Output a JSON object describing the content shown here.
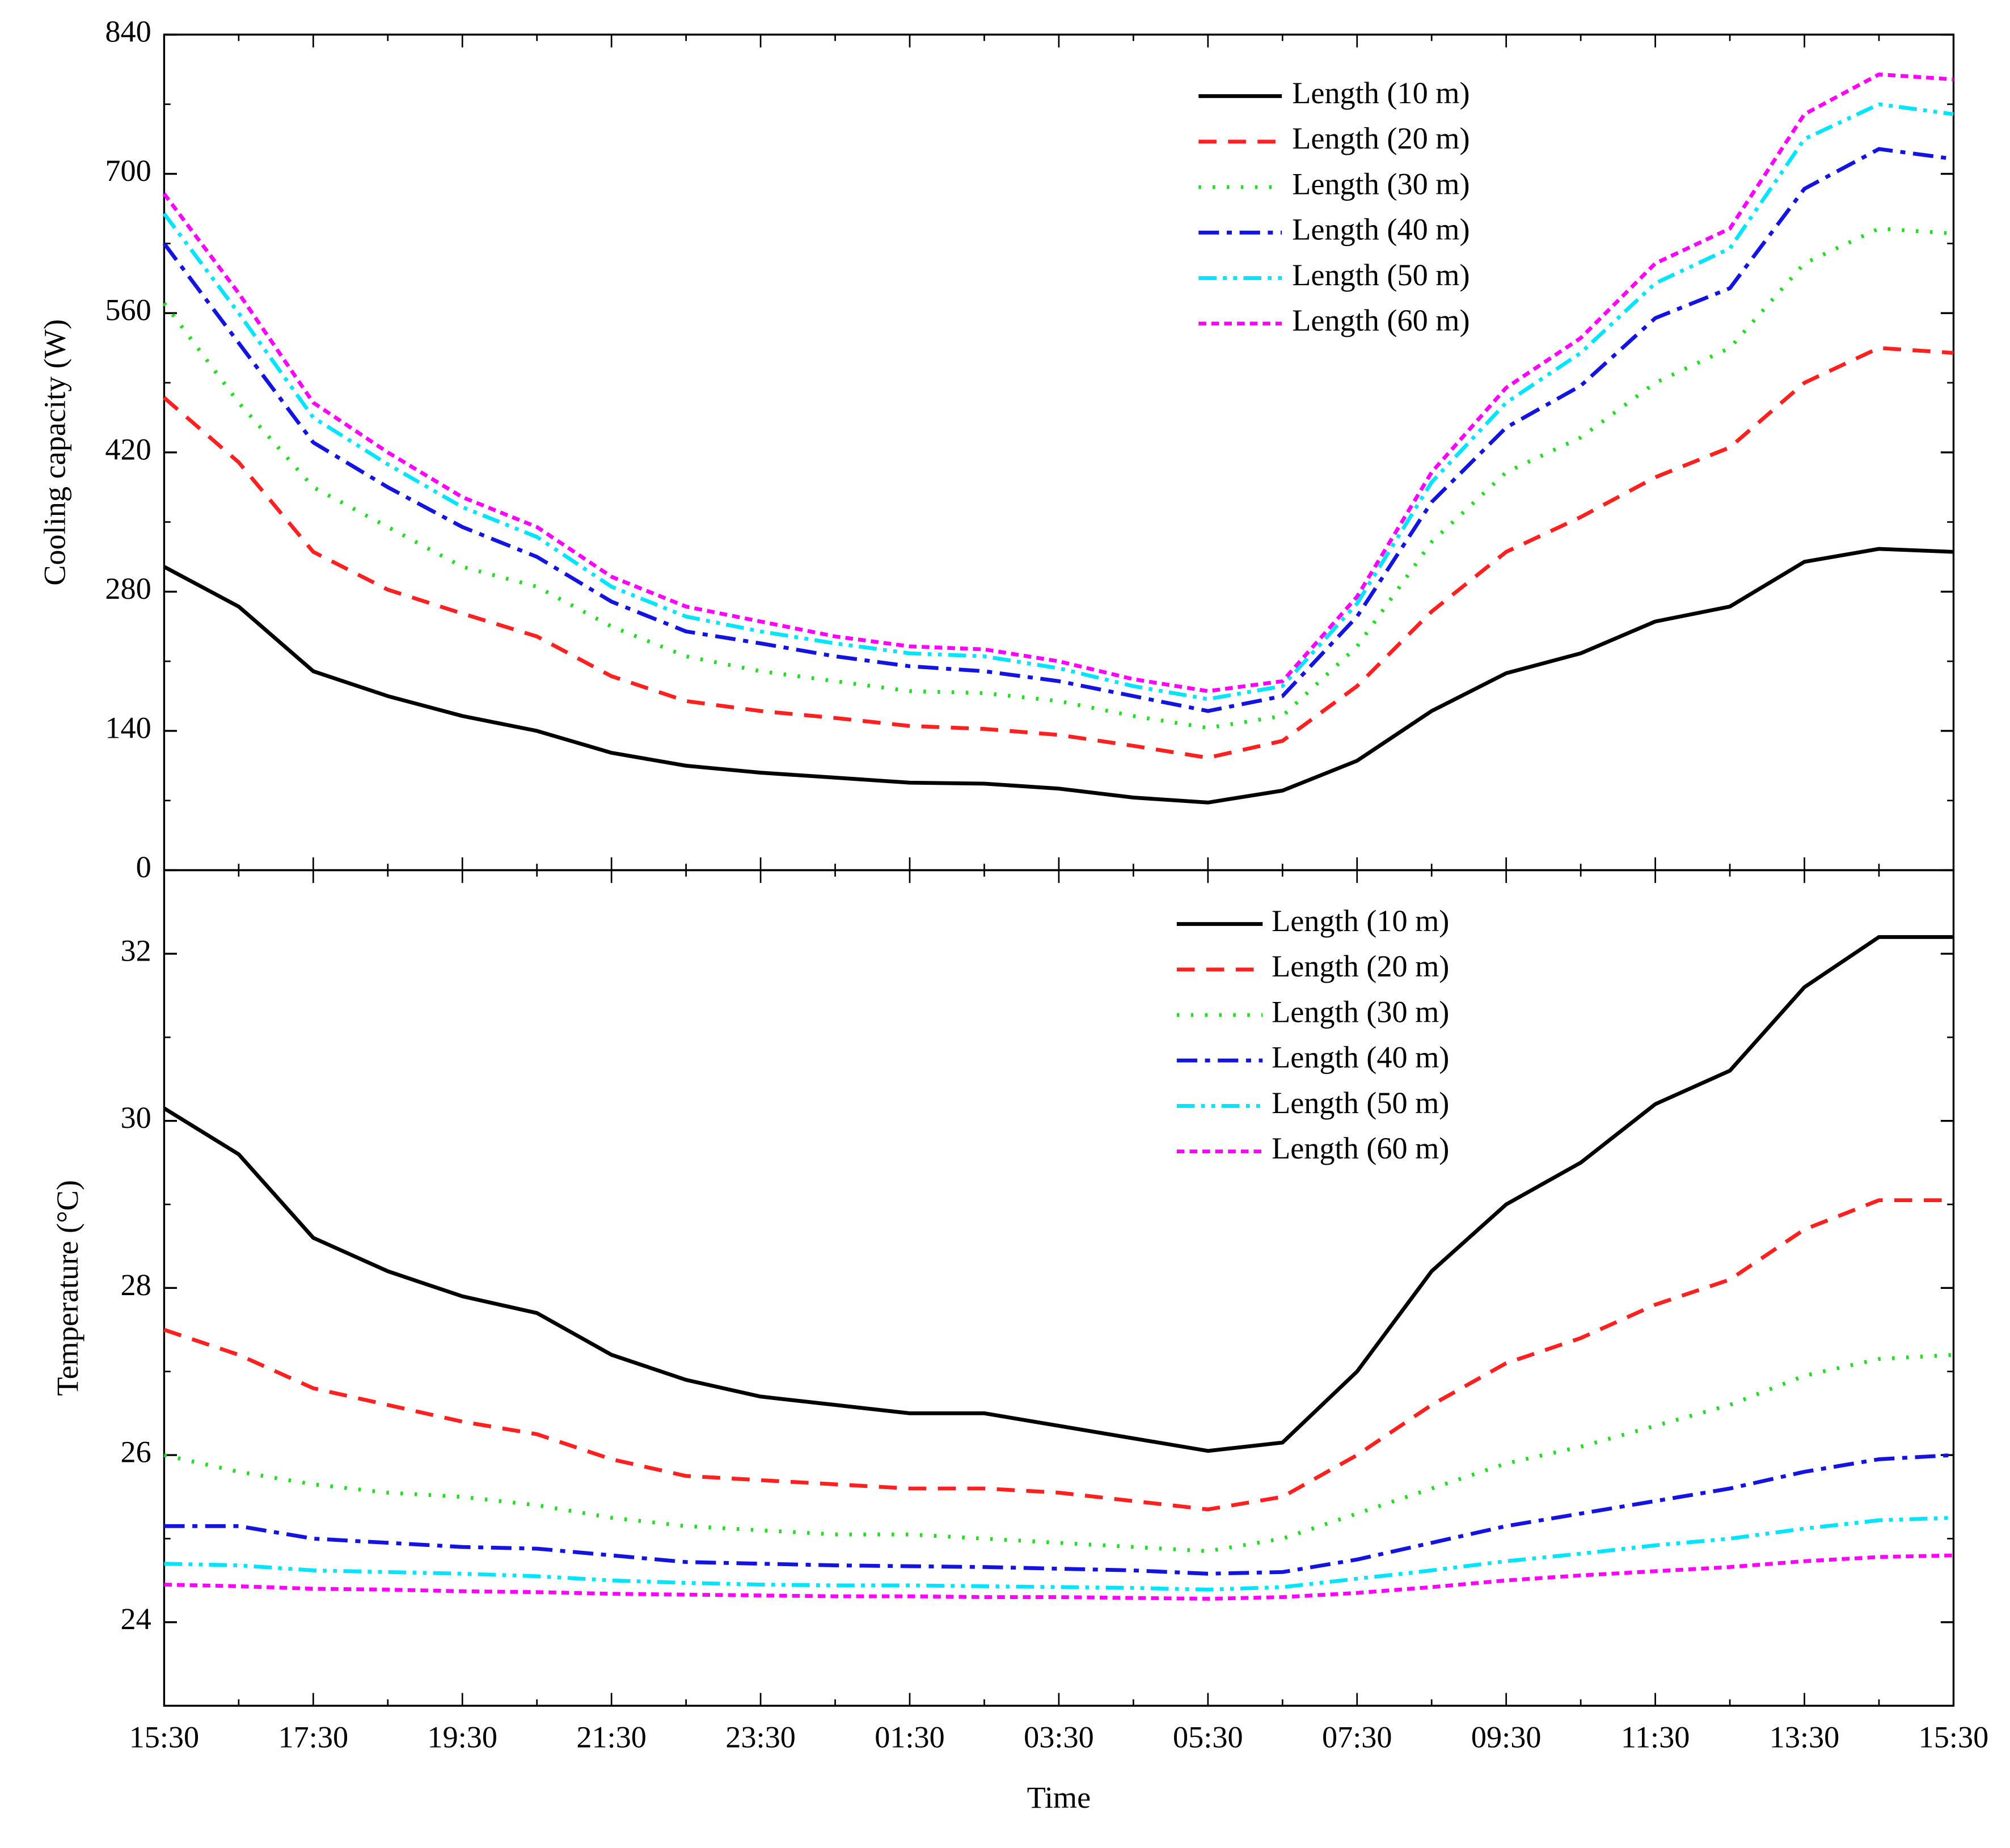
{
  "chart_data": [
    {
      "type": "line",
      "ylabel": "Cooling capacity (W)",
      "ylim": [
        0,
        840
      ],
      "yticks": [
        0,
        140,
        280,
        420,
        560,
        700,
        840
      ],
      "legend": "upper right",
      "series": [
        {
          "name": "Length (10 m)",
          "color": "#000000",
          "dash": "solid",
          "values": [
            305,
            265,
            200,
            175,
            155,
            140,
            118,
            105,
            98,
            93,
            88,
            87,
            82,
            73,
            68,
            80,
            110,
            160,
            198,
            218,
            250,
            265,
            310,
            323,
            320
          ]
        },
        {
          "name": "Length (20 m)",
          "color": "#ff2020",
          "dash": "dashed",
          "values": [
            475,
            410,
            320,
            282,
            258,
            235,
            195,
            170,
            160,
            153,
            145,
            142,
            136,
            125,
            113,
            130,
            185,
            260,
            320,
            355,
            395,
            425,
            490,
            525,
            520
          ]
        },
        {
          "name": "Length (30 m)",
          "color": "#22dd22",
          "dash": "dotted",
          "values": [
            570,
            470,
            385,
            345,
            305,
            285,
            245,
            215,
            200,
            190,
            180,
            178,
            170,
            155,
            143,
            155,
            225,
            330,
            400,
            435,
            490,
            525,
            610,
            645,
            640
          ]
        },
        {
          "name": "Length (40 m)",
          "color": "#1414e0",
          "dash": "dashdot",
          "values": [
            630,
            530,
            430,
            385,
            345,
            315,
            270,
            240,
            228,
            215,
            205,
            200,
            190,
            175,
            160,
            175,
            255,
            370,
            445,
            487,
            555,
            585,
            685,
            725,
            715
          ]
        },
        {
          "name": "Length (50 m)",
          "color": "#00e5ff",
          "dash": "dashdotdot",
          "values": [
            660,
            560,
            455,
            408,
            365,
            335,
            285,
            255,
            240,
            228,
            218,
            215,
            203,
            185,
            172,
            185,
            268,
            390,
            470,
            520,
            590,
            625,
            735,
            770,
            760
          ]
        },
        {
          "name": "Length (60 m)",
          "color": "#ff00ff",
          "dash": "shortdash",
          "values": [
            680,
            580,
            470,
            420,
            375,
            345,
            295,
            265,
            250,
            235,
            225,
            222,
            210,
            192,
            180,
            190,
            275,
            400,
            485,
            535,
            610,
            645,
            760,
            800,
            795
          ]
        }
      ]
    },
    {
      "type": "line",
      "xlabel": "Time",
      "ylabel": "Temperature (°C)",
      "categories": [
        "15:30",
        null,
        "17:30",
        null,
        "19:30",
        null,
        "21:30",
        null,
        "23:30",
        null,
        "01:30",
        null,
        "03:30",
        null,
        "05:30",
        null,
        "07:30",
        null,
        "09:30",
        null,
        "11:30",
        null,
        "13:30",
        null,
        "15:30"
      ],
      "ylim": [
        23,
        33
      ],
      "yticks": [
        24,
        26,
        28,
        30,
        32
      ],
      "legend": "upper right",
      "series": [
        {
          "name": "Length (10 m)",
          "color": "#000000",
          "dash": "solid",
          "values": [
            30.15,
            29.6,
            28.6,
            28.2,
            27.9,
            27.7,
            27.2,
            26.9,
            26.7,
            26.6,
            26.5,
            26.5,
            26.35,
            26.2,
            26.05,
            26.15,
            27.0,
            28.2,
            29.0,
            29.5,
            30.2,
            30.6,
            31.6,
            32.2,
            32.2
          ]
        },
        {
          "name": "Length (20 m)",
          "color": "#ff2020",
          "dash": "dashed",
          "values": [
            27.5,
            27.2,
            26.8,
            26.6,
            26.4,
            26.25,
            25.95,
            25.75,
            25.7,
            25.65,
            25.6,
            25.6,
            25.55,
            25.45,
            25.35,
            25.5,
            26.0,
            26.6,
            27.1,
            27.4,
            27.8,
            28.1,
            28.7,
            29.05,
            29.05
          ]
        },
        {
          "name": "Length (30 m)",
          "color": "#22dd22",
          "dash": "dotted",
          "values": [
            26.0,
            25.8,
            25.65,
            25.55,
            25.5,
            25.4,
            25.25,
            25.15,
            25.1,
            25.05,
            25.05,
            25.0,
            24.95,
            24.9,
            24.85,
            25.0,
            25.3,
            25.6,
            25.9,
            26.1,
            26.35,
            26.6,
            26.95,
            27.15,
            27.2
          ]
        },
        {
          "name": "Length (40 m)",
          "color": "#1414e0",
          "dash": "dashdot",
          "values": [
            25.15,
            25.15,
            25.0,
            24.95,
            24.9,
            24.88,
            24.8,
            24.72,
            24.7,
            24.68,
            24.67,
            24.66,
            24.64,
            24.62,
            24.58,
            24.6,
            24.75,
            24.95,
            25.15,
            25.3,
            25.45,
            25.6,
            25.8,
            25.95,
            26.0
          ]
        },
        {
          "name": "Length (50 m)",
          "color": "#00e5ff",
          "dash": "dashdotdot",
          "values": [
            24.7,
            24.68,
            24.62,
            24.6,
            24.58,
            24.55,
            24.5,
            24.47,
            24.45,
            24.44,
            24.44,
            24.43,
            24.42,
            24.41,
            24.39,
            24.42,
            24.52,
            24.62,
            24.73,
            24.82,
            24.92,
            25.0,
            25.12,
            25.22,
            25.25
          ]
        },
        {
          "name": "Length (60 m)",
          "color": "#ff00ff",
          "dash": "shortdash",
          "values": [
            24.45,
            24.43,
            24.4,
            24.39,
            24.37,
            24.36,
            24.34,
            24.33,
            24.32,
            24.31,
            24.31,
            24.3,
            24.3,
            24.29,
            24.28,
            24.3,
            24.35,
            24.42,
            24.5,
            24.56,
            24.61,
            24.66,
            24.73,
            24.78,
            24.8
          ]
        }
      ]
    }
  ]
}
